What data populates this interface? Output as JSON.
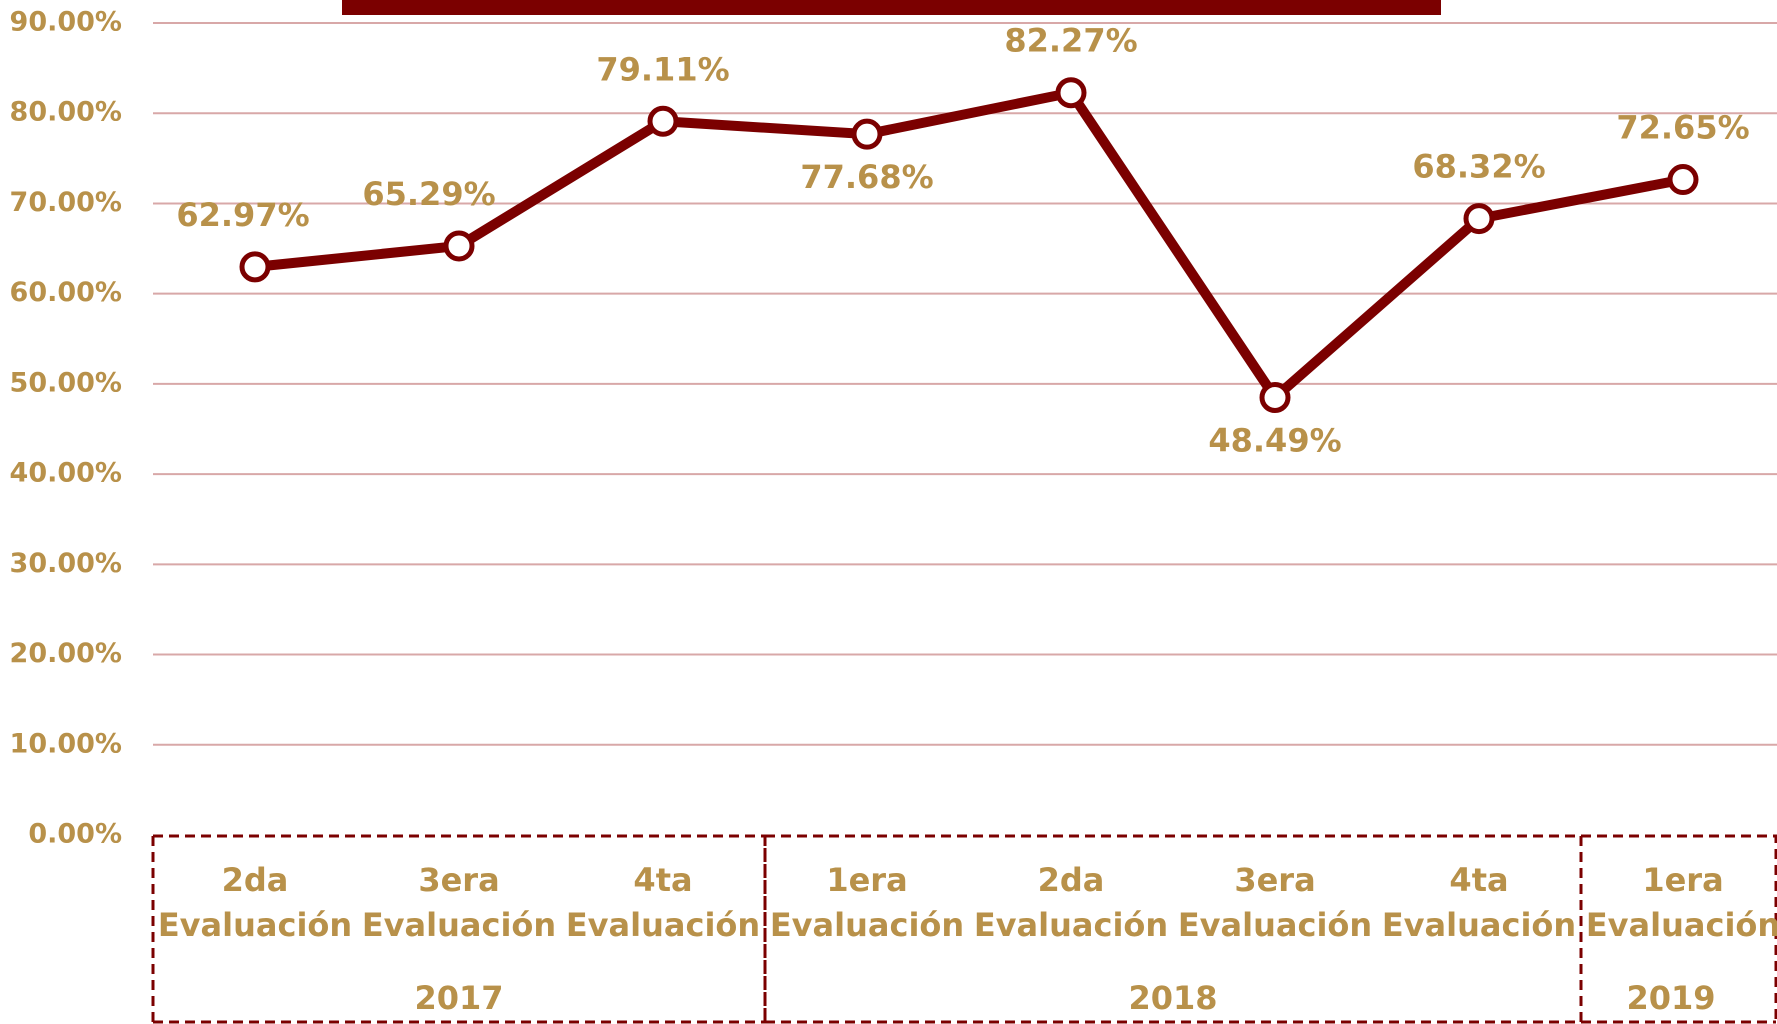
{
  "chart_data": {
    "type": "line",
    "groups": [
      {
        "label": "2017",
        "categories": [
          [
            "2da",
            "Evaluación"
          ],
          [
            "3era",
            "Evaluación"
          ],
          [
            "4ta",
            "Evaluación"
          ]
        ]
      },
      {
        "label": "2018",
        "categories": [
          [
            "1era",
            "Evaluación"
          ],
          [
            "2da",
            "Evaluación"
          ],
          [
            "3era",
            "Evaluación"
          ],
          [
            "4ta",
            "Evaluación"
          ]
        ]
      },
      {
        "label": "2019",
        "categories": [
          [
            "1era",
            "Evaluación"
          ]
        ]
      }
    ],
    "series": [
      {
        "color": "#7b0000",
        "values": [
          62.97,
          65.29,
          79.11,
          77.68,
          82.27,
          48.49,
          68.32,
          72.65
        ],
        "value_labels": [
          "62.97%",
          "65.29%",
          "79.11%",
          "77.68%",
          "82.27%",
          "48.49%",
          "68.32%",
          "72.65%"
        ]
      }
    ],
    "ylim": [
      0,
      90
    ],
    "yticks": [
      {
        "value": 0,
        "label": "0.00%"
      },
      {
        "value": 10,
        "label": "10.00%"
      },
      {
        "value": 20,
        "label": "20.00%"
      },
      {
        "value": 30,
        "label": "30.00%"
      },
      {
        "value": 40,
        "label": "40.00%"
      },
      {
        "value": 50,
        "label": "50.00%"
      },
      {
        "value": 60,
        "label": "60.00%"
      },
      {
        "value": 70,
        "label": "70.00%"
      },
      {
        "value": 80,
        "label": "80.00%"
      },
      {
        "value": 90,
        "label": "90.00%"
      }
    ],
    "grid": true
  }
}
